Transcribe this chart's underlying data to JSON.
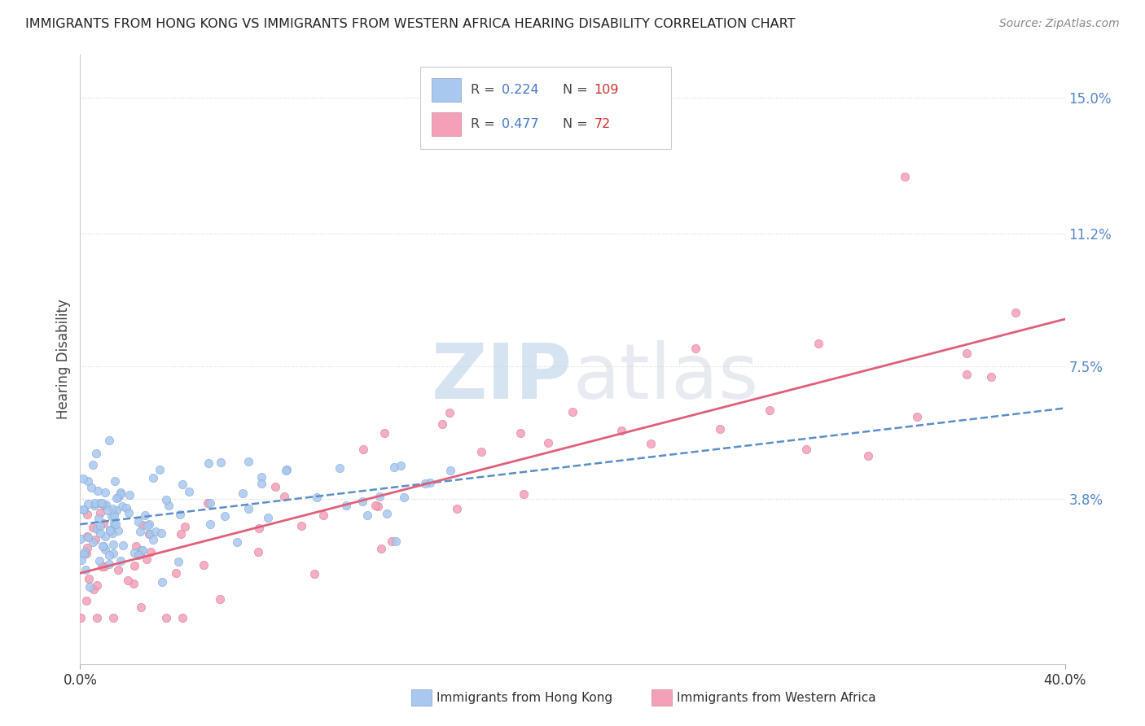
{
  "title": "IMMIGRANTS FROM HONG KONG VS IMMIGRANTS FROM WESTERN AFRICA HEARING DISABILITY CORRELATION CHART",
  "source": "Source: ZipAtlas.com",
  "ylabel": "Hearing Disability",
  "xlim": [
    0.0,
    0.4
  ],
  "ylim": [
    -0.008,
    0.162
  ],
  "yticks": [
    0.038,
    0.075,
    0.112,
    0.15
  ],
  "ytick_labels": [
    "3.8%",
    "7.5%",
    "11.2%",
    "15.0%"
  ],
  "xtick_labels_ends": [
    "0.0%",
    "40.0%"
  ],
  "series": [
    {
      "label": "Immigrants from Hong Kong",
      "R": 0.224,
      "N": 109,
      "color": "#a8c8f0",
      "line_color": "#5b8fc9",
      "line_style": "--"
    },
    {
      "label": "Immigrants from Western Africa",
      "R": 0.477,
      "N": 72,
      "color": "#f4a0b8",
      "line_color": "#e0607a",
      "line_style": "-"
    }
  ],
  "watermark_zip": "ZIP",
  "watermark_atlas": "atlas",
  "background_color": "#ffffff",
  "grid_color": "#d8d8d8",
  "legend_R_color": "#4477cc",
  "legend_N_color": "#cc3333",
  "title_color": "#222222",
  "source_color": "#888888",
  "ylabel_color": "#444444",
  "ytick_color": "#5588cc",
  "xtick_color": "#333333"
}
